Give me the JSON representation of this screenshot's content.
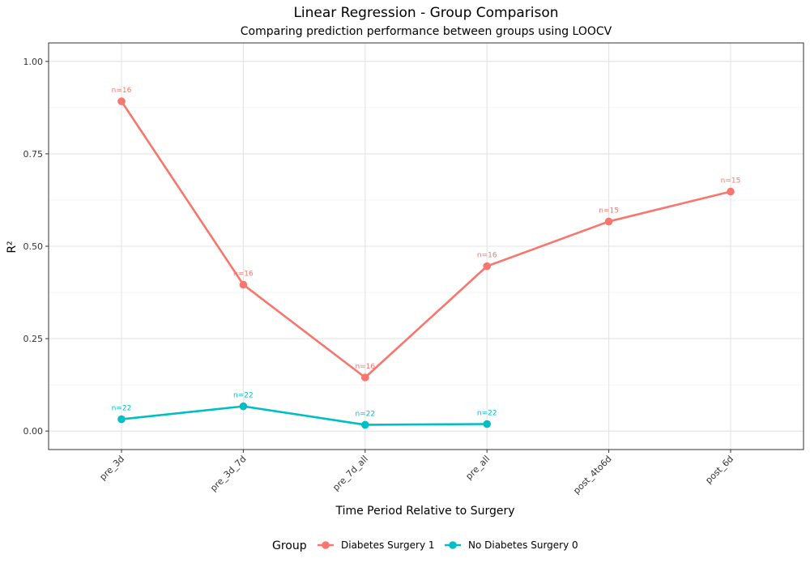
{
  "chart_data": {
    "type": "line",
    "title": "Linear Regression - Group Comparison",
    "subtitle": "Comparing prediction performance between groups using LOOCV",
    "xlabel": "Time Period Relative to Surgery",
    "ylabel": "R²",
    "categories": [
      "pre_3d",
      "pre_3d_7d",
      "pre_7d_all",
      "pre_all",
      "post_4to6d",
      "post_6d"
    ],
    "ylim": [
      -0.05,
      1.05
    ],
    "yticks": [
      0.0,
      0.25,
      0.5,
      0.75,
      1.0
    ],
    "ytick_labels": [
      "0.00",
      "0.25",
      "0.50",
      "0.75",
      "1.00"
    ],
    "grid": true,
    "legend": {
      "title": "Group",
      "position": "bottom"
    },
    "series": [
      {
        "name": "Diabetes Surgery 1",
        "color": "#F8766D",
        "values": [
          0.892,
          0.396,
          0.145,
          0.446,
          0.567,
          0.648
        ],
        "labels": [
          "n=16",
          "n=16",
          "n=16",
          "n=16",
          "n=15",
          "n=15"
        ]
      },
      {
        "name": "No Diabetes Surgery 0",
        "color": "#00BFC4",
        "values": [
          0.032,
          0.067,
          0.017,
          0.019,
          null,
          null
        ],
        "labels": [
          "n=22",
          "n=22",
          "n=22",
          "n=22",
          null,
          null
        ]
      }
    ]
  }
}
